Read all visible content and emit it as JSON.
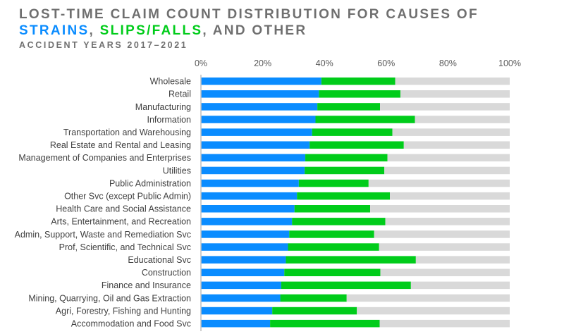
{
  "chart_data": {
    "type": "bar",
    "orientation": "horizontal",
    "stacked": true,
    "title_line1": "LOST-TIME CLAIM COUNT DISTRIBUTION FOR CAUSES OF",
    "title_line2": {
      "strains": "STRAINS",
      "sep1": ", ",
      "slips": "SLIPS/FALLS",
      "rest": ", AND OTHER"
    },
    "subtitle": "ACCIDENT YEARS 2017–2021",
    "xlabel": "",
    "ylabel": "",
    "xlim": [
      0,
      100
    ],
    "x_ticks": [
      "0%",
      "20%",
      "40%",
      "60%",
      "80%",
      "100%"
    ],
    "x_tick_values": [
      0,
      20,
      40,
      60,
      80,
      100
    ],
    "x_axis_position": "top",
    "grid": false,
    "categories": [
      "Wholesale",
      "Retail",
      "Manufacturing",
      "Information",
      "Transportation and Warehousing",
      "Real Estate and Rental and Leasing",
      "Management of Companies and Enterprises",
      "Utilities",
      "Public Administration",
      "Other Svc (except Public Admin)",
      "Health Care and Social Assistance",
      "Arts, Entertainment, and Recreation",
      "Admin, Support, Waste and Remediation Svc",
      "Prof, Scientific, and Technical Svc",
      "Educational Svc",
      "Construction",
      "Finance and Insurance",
      "Mining, Quarrying, Oil and Gas Extraction",
      "Agri, Forestry, Fishing and Hunting",
      "Accommodation and Food Svc"
    ],
    "series": [
      {
        "name": "Strains",
        "color": "#0a8cff",
        "values": [
          39.0,
          38.2,
          37.7,
          37.1,
          36.0,
          35.2,
          33.8,
          33.6,
          31.7,
          31.1,
          30.3,
          29.5,
          28.6,
          28.2,
          27.5,
          27.0,
          26.0,
          25.7,
          23.1,
          22.4
        ]
      },
      {
        "name": "Slips/Falls",
        "color": "#00cc1a",
        "values": [
          23.9,
          26.4,
          20.3,
          32.2,
          26.0,
          30.5,
          26.6,
          25.8,
          22.6,
          30.1,
          24.5,
          30.2,
          27.5,
          29.5,
          42.1,
          31.1,
          42.0,
          21.5,
          27.4,
          35.5
        ]
      },
      {
        "name": "Other",
        "color": "#d9d9d9",
        "values": [
          37.1,
          35.4,
          42.0,
          30.7,
          38.0,
          34.3,
          39.6,
          40.6,
          45.7,
          38.8,
          45.2,
          40.3,
          43.9,
          42.3,
          30.4,
          41.9,
          32.0,
          52.8,
          49.5,
          42.1
        ]
      }
    ],
    "legend": "none (encoded in colored title words)"
  }
}
